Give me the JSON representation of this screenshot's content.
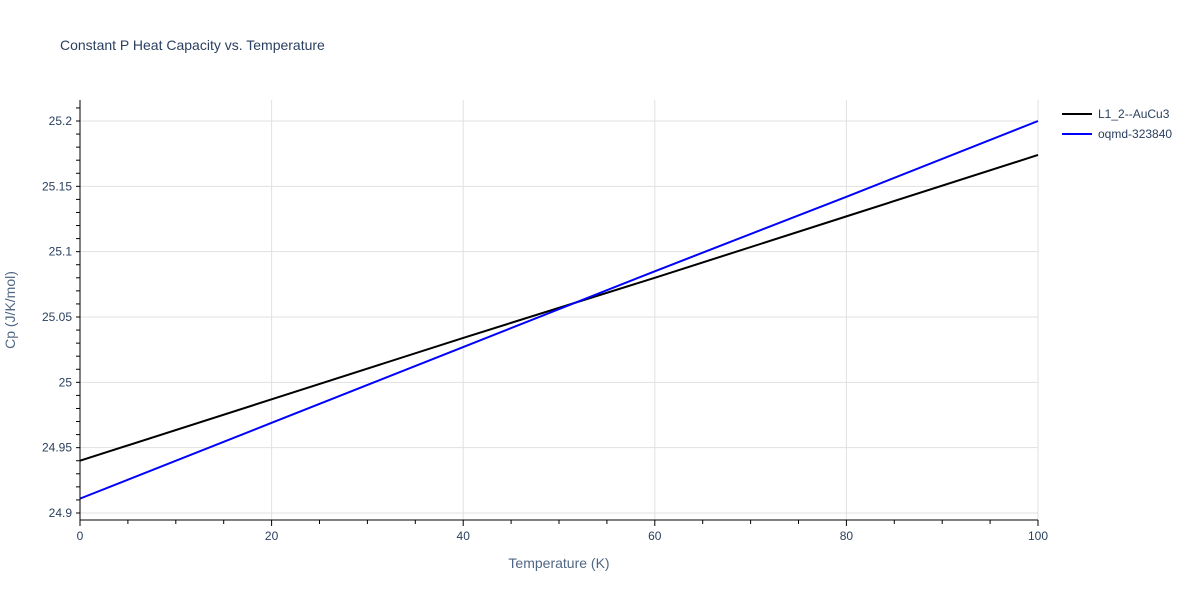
{
  "chart_data": {
    "type": "line",
    "title": "Constant P Heat Capacity vs. Temperature",
    "xlabel": "Temperature (K)",
    "ylabel": "Cp (J/K/mol)",
    "xlim": [
      0,
      100
    ],
    "ylim": [
      24.8955,
      25.2178
    ],
    "x_ticks": [
      0,
      20,
      40,
      60,
      80,
      100
    ],
    "y_ticks": [
      24.9,
      24.95,
      25.0,
      25.05,
      25.1,
      25.15,
      25.2
    ],
    "x_tick_labels": [
      "0",
      "20",
      "40",
      "60",
      "80",
      "100"
    ],
    "y_tick_labels": [
      "24.9",
      "24.95",
      "25",
      "25.05",
      "25.1",
      "25.15",
      "25.2"
    ],
    "grid": true,
    "legend_position": "right-top",
    "series": [
      {
        "name": "L1_2--AuCu3",
        "color": "#000000",
        "x": [
          0,
          20,
          40,
          60,
          80,
          100
        ],
        "values": [
          24.94,
          24.987,
          25.034,
          25.08,
          25.127,
          25.174
        ]
      },
      {
        "name": "oqmd-323840",
        "color": "#0000ff",
        "x": [
          0,
          20,
          40,
          60,
          80,
          100
        ],
        "values": [
          24.911,
          24.969,
          25.027,
          25.085,
          25.142,
          25.2
        ]
      }
    ]
  }
}
